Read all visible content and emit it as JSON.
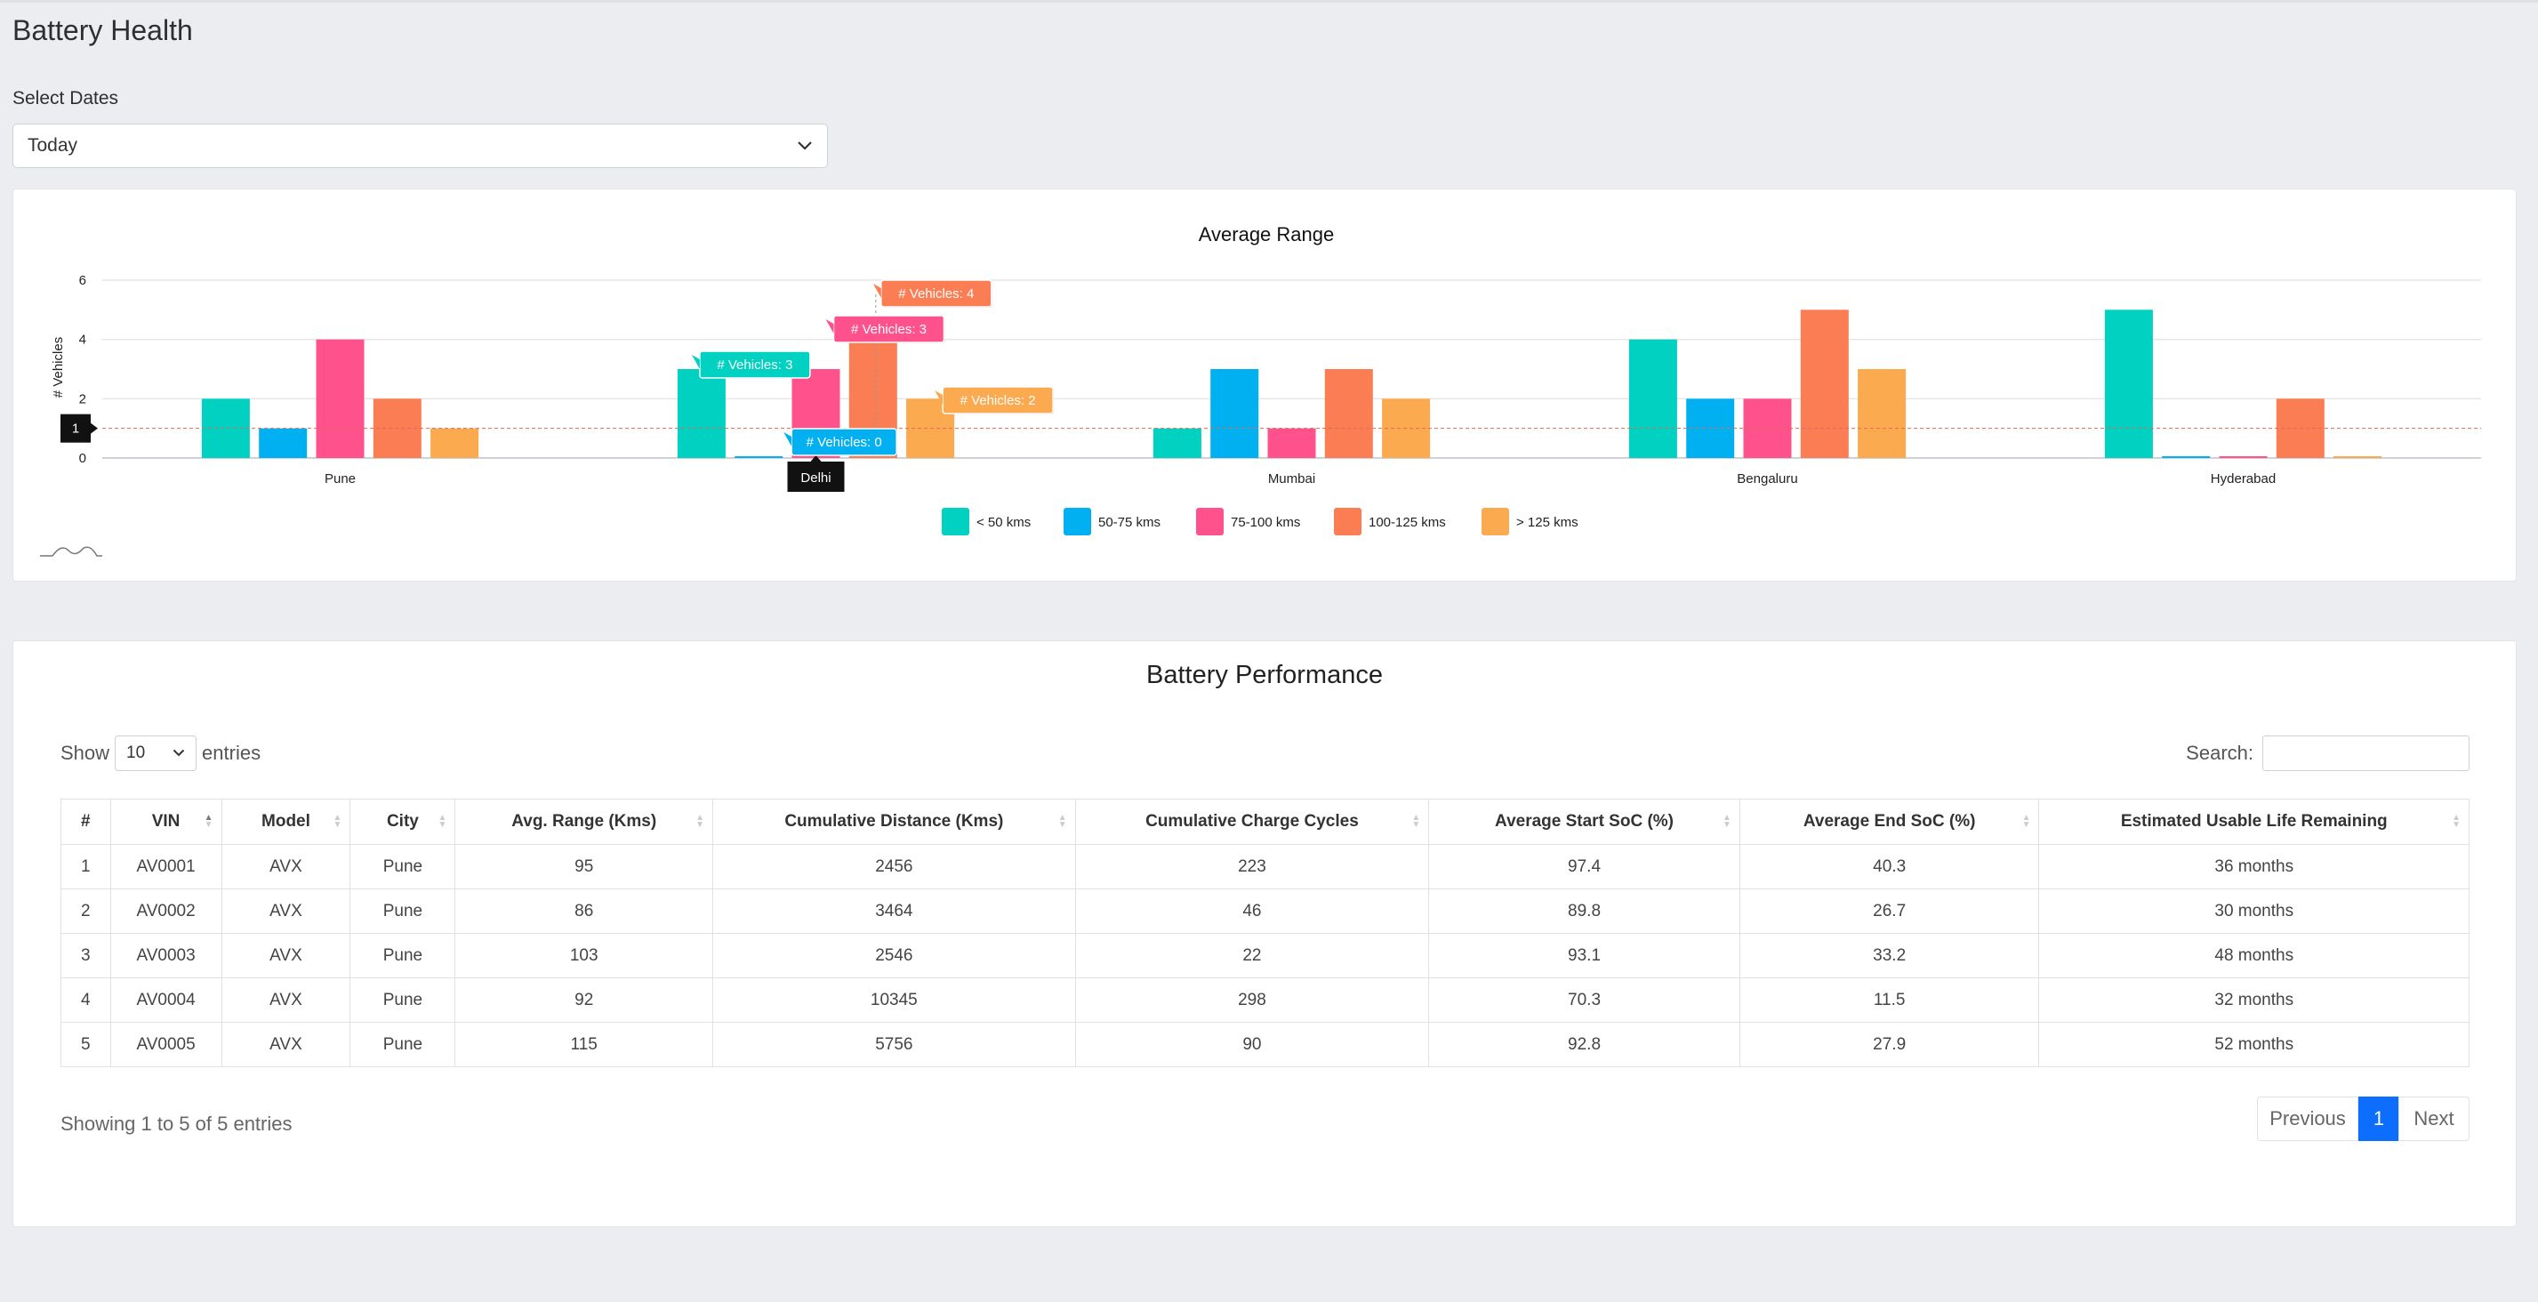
{
  "page": {
    "title": "Battery Health"
  },
  "filters": {
    "dates_label": "Select Dates",
    "dates_value": "Today"
  },
  "tooltips": {
    "crosshair_value": "1",
    "category": "Delhi",
    "series_0": "# Vehicles: 3",
    "series_1": "# Vehicles: 0",
    "series_2": "# Vehicles: 3",
    "series_3": "# Vehicles: 4",
    "series_4": "# Vehicles: 2"
  },
  "chart_data": {
    "type": "bar",
    "title": "Average Range",
    "xlabel": "",
    "ylabel": "# Vehicles",
    "ylim": [
      0,
      6
    ],
    "yticks": [
      0,
      2,
      4,
      6
    ],
    "categories": [
      "Pune",
      "Delhi",
      "Mumbai",
      "Bengaluru",
      "Hyderabad"
    ],
    "series": [
      {
        "name": "< 50 kms",
        "color": "#00d1c1",
        "values": [
          2,
          3,
          1,
          4,
          5
        ]
      },
      {
        "name": "50-75 kms",
        "color": "#00b0f0",
        "values": [
          1,
          0,
          3,
          2,
          0
        ]
      },
      {
        "name": "75-100 kms",
        "color": "#ff528c",
        "values": [
          4,
          3,
          1,
          2,
          0
        ]
      },
      {
        "name": "100-125 kms",
        "color": "#fa7d53",
        "values": [
          2,
          4,
          3,
          5,
          2
        ]
      },
      {
        "name": "> 125 kms",
        "color": "#fbaa4f",
        "values": [
          1,
          2,
          2,
          3,
          0
        ]
      }
    ],
    "legend": "bottom",
    "grid": true
  },
  "table": {
    "title": "Battery Performance",
    "show_label": "Show",
    "entries_label": "entries",
    "page_length": "10",
    "search_label": "Search:",
    "columns": [
      "#",
      "VIN",
      "Model",
      "City",
      "Avg. Range (Kms)",
      "Cumulative Distance (Kms)",
      "Cumulative Charge Cycles",
      "Average Start SoC (%)",
      "Average End SoC (%)",
      "Estimated Usable Life Remaining"
    ],
    "rows": [
      [
        "1",
        "AV0001",
        "AVX",
        "Pune",
        "95",
        "2456",
        "223",
        "97.4",
        "40.3",
        "36 months"
      ],
      [
        "2",
        "AV0002",
        "AVX",
        "Pune",
        "86",
        "3464",
        "46",
        "89.8",
        "26.7",
        "30 months"
      ],
      [
        "3",
        "AV0003",
        "AVX",
        "Pune",
        "103",
        "2546",
        "22",
        "93.1",
        "33.2",
        "48 months"
      ],
      [
        "4",
        "AV0004",
        "AVX",
        "Pune",
        "92",
        "10345",
        "298",
        "70.3",
        "11.5",
        "32 months"
      ],
      [
        "5",
        "AV0005",
        "AVX",
        "Pune",
        "115",
        "5756",
        "90",
        "92.8",
        "27.9",
        "52 months"
      ]
    ],
    "info": "Showing 1 to 5 of 5 entries",
    "pagination": {
      "previous": "Previous",
      "current": "1",
      "next": "Next"
    }
  }
}
